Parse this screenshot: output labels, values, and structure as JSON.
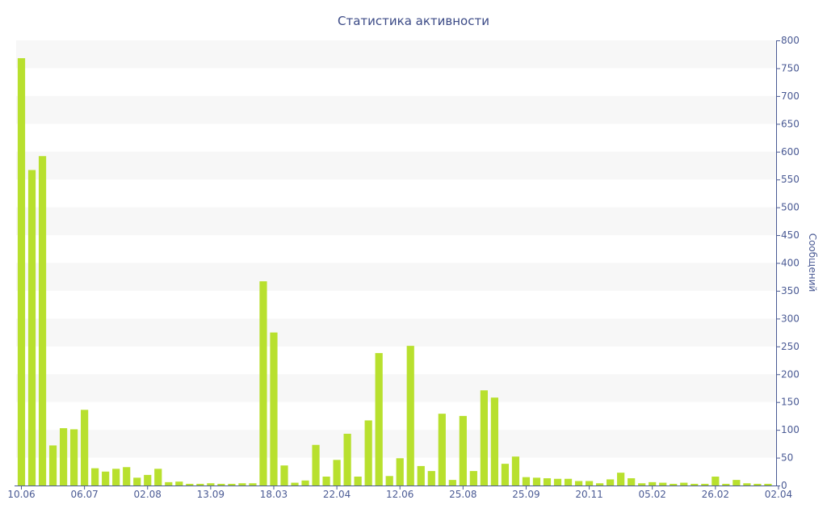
{
  "chart_data": {
    "type": "bar",
    "title": "Статистика активности",
    "ylabel": "Сообщений",
    "xlabel": "",
    "y_axis_position": "right",
    "ylim": [
      0,
      800
    ],
    "y_ticks": [
      0,
      50,
      100,
      150,
      200,
      250,
      300,
      350,
      400,
      450,
      500,
      550,
      600,
      650,
      700,
      750,
      800
    ],
    "bar_color": "#b8e02e",
    "band_color": "#f7f7f7",
    "axis_color": "#4a5a94",
    "grid": "alternating horizontal bands",
    "x_tick_labels": [
      {
        "index": 0,
        "label": "10.06"
      },
      {
        "index": 6,
        "label": "06.07"
      },
      {
        "index": 12,
        "label": "02.08"
      },
      {
        "index": 18,
        "label": "13.09"
      },
      {
        "index": 24,
        "label": "18.03"
      },
      {
        "index": 30,
        "label": "22.04"
      },
      {
        "index": 36,
        "label": "12.06"
      },
      {
        "index": 42,
        "label": "25.08"
      },
      {
        "index": 48,
        "label": "25.09"
      },
      {
        "index": 54,
        "label": "20.11"
      },
      {
        "index": 60,
        "label": "05.02"
      },
      {
        "index": 66,
        "label": "26.02"
      },
      {
        "index": 72,
        "label": "02.04"
      }
    ],
    "values": [
      768,
      567,
      592,
      72,
      103,
      101,
      136,
      31,
      25,
      30,
      33,
      14,
      19,
      30,
      6,
      7,
      3,
      3,
      4,
      3,
      3,
      4,
      4,
      367,
      275,
      36,
      5,
      9,
      73,
      16,
      46,
      93,
      16,
      117,
      238,
      17,
      49,
      251,
      35,
      26,
      129,
      10,
      125,
      26,
      171,
      158,
      39,
      52,
      15,
      14,
      13,
      12,
      12,
      8,
      8,
      4,
      11,
      23,
      13,
      4,
      6,
      5,
      3,
      5,
      3,
      3,
      16,
      3,
      10,
      4,
      3,
      3
    ]
  }
}
